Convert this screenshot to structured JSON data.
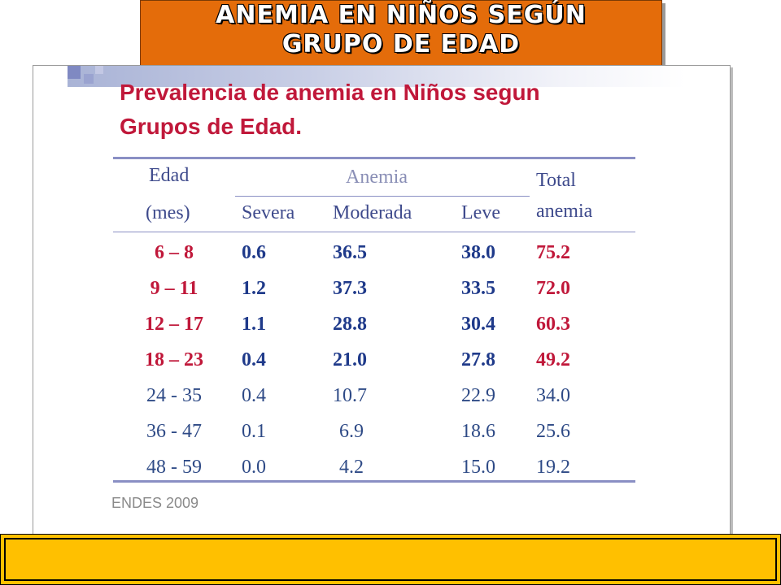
{
  "banner": {
    "line1": "ANEMIA EN NIÑOS SEGÚN",
    "line2": "GRUPO DE EDAD",
    "color": "#e46c0a"
  },
  "panel": {
    "heading_line1": "Prevalencia de anemia en Niños segun",
    "heading_line2": "Grupos de Edad.",
    "heading_color": "#c0183a"
  },
  "table": {
    "header": {
      "age_line1": "Edad",
      "age_line2": "(mes)",
      "group": "Anemia",
      "severe": "Severa",
      "moderate": "Moderada",
      "mild": "Leve",
      "total_line1": "Total",
      "total_line2": "anemia"
    },
    "rows": [
      {
        "age": "6 – 8",
        "severe": "0.6",
        "moderate": "36.5",
        "mild": "38.0",
        "total": "75.2"
      },
      {
        "age": "9 – 11",
        "severe": "1.2",
        "moderate": "37.3",
        "mild": "33.5",
        "total": "72.0"
      },
      {
        "age": "12 – 17",
        "severe": "1.1",
        "moderate": "28.8",
        "mild": "30.4",
        "total": "60.3"
      },
      {
        "age": "18 – 23",
        "severe": "0.4",
        "moderate": "21.0",
        "mild": "27.8",
        "total": "49.2"
      },
      {
        "age": "24 - 35",
        "severe": "0.4",
        "moderate": "10.7",
        "mild": "22.9",
        "total": "34.0"
      },
      {
        "age": "36 - 47",
        "severe": "0.1",
        "moderate": "6.9",
        "mild": "18.6",
        "total": "25.6"
      },
      {
        "age": "48 - 59",
        "severe": "0.0",
        "moderate": "4.2",
        "mild": "15.0",
        "total": "19.2"
      }
    ]
  },
  "source": "ENDES 2009",
  "bottom_bar_color": "#ffc000"
}
